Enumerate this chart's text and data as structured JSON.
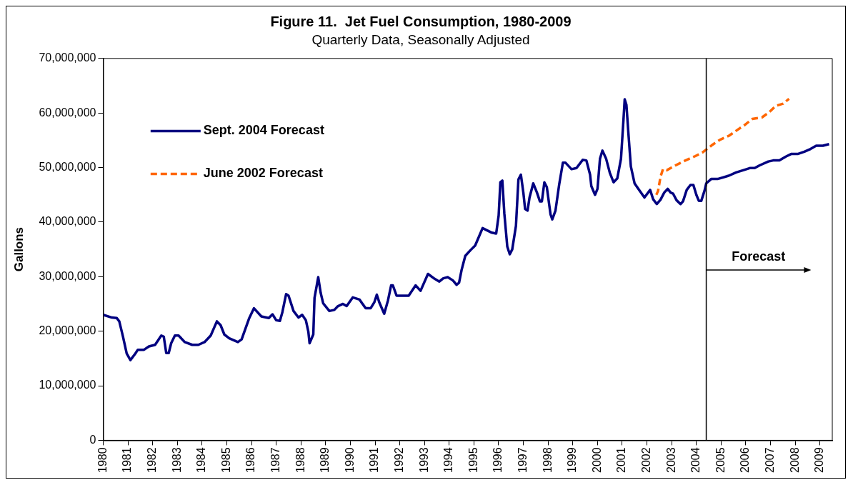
{
  "chart_data": {
    "type": "line",
    "title": "Figure 11.  Jet Fuel Consumption, 1980-2009",
    "subtitle": "Quarterly Data, Seasonally Adjusted",
    "ylabel": "Gallons",
    "xlim": [
      1980,
      2009.5
    ],
    "xticks": [
      1980,
      1981,
      1982,
      1983,
      1984,
      1985,
      1986,
      1987,
      1988,
      1989,
      1990,
      1991,
      1992,
      1993,
      1994,
      1995,
      1996,
      1997,
      1998,
      1999,
      2000,
      2001,
      2002,
      2003,
      2004,
      2005,
      2006,
      2007,
      2008,
      2009
    ],
    "ylim": [
      0,
      70000000
    ],
    "yticks": [
      {
        "value": 0,
        "label": "0"
      },
      {
        "value": 10000000,
        "label": "10,000,000"
      },
      {
        "value": 20000000,
        "label": "20,000,000"
      },
      {
        "value": 30000000,
        "label": "30,000,000"
      },
      {
        "value": 40000000,
        "label": "40,000,000"
      },
      {
        "value": 50000000,
        "label": "50,000,000"
      },
      {
        "value": 60000000,
        "label": "60,000,000"
      },
      {
        "value": 70000000,
        "label": "70,000,000"
      }
    ],
    "grid": false,
    "legend": "top left",
    "marker": "none",
    "series": [
      {
        "name": "Sept. 2004 Forecast",
        "color": "#000080",
        "line_style": "solid",
        "x": [
          1980,
          1980.35,
          1980.55,
          1980.65,
          1980.8,
          1980.95,
          1981.1,
          1981.3,
          1981.4,
          1981.65,
          1981.85,
          1982.1,
          1982.35,
          1982.45,
          1982.55,
          1982.65,
          1982.75,
          1982.9,
          1983.05,
          1983.3,
          1983.6,
          1983.85,
          1984.1,
          1984.35,
          1984.6,
          1984.75,
          1984.9,
          1985.1,
          1985.45,
          1985.6,
          1985.75,
          1985.9,
          1986.1,
          1986.4,
          1986.7,
          1986.85,
          1987,
          1987.15,
          1987.25,
          1987.4,
          1987.5,
          1987.7,
          1987.9,
          1988.05,
          1988.2,
          1988.3,
          1988.35,
          1988.5,
          1988.55,
          1988.7,
          1988.8,
          1988.9,
          1989.15,
          1989.35,
          1989.5,
          1989.7,
          1989.85,
          1990.1,
          1990.37,
          1990.62,
          1990.82,
          1990.97,
          1991.07,
          1991.17,
          1991.37,
          1991.52,
          1991.65,
          1991.72,
          1991.87,
          1992.36,
          1992.64,
          1992.84,
          1993.14,
          1993.41,
          1993.6,
          1993.76,
          1993.94,
          1994.15,
          1994.3,
          1994.4,
          1994.5,
          1994.65,
          1994.85,
          1995.05,
          1995.35,
          1995.7,
          1995.9,
          1996,
          1996.07,
          1996.15,
          1996.23,
          1996.35,
          1996.45,
          1996.55,
          1996.7,
          1996.8,
          1996.9,
          1997,
          1997.07,
          1997.17,
          1997.25,
          1997.4,
          1997.55,
          1997.67,
          1997.75,
          1997.85,
          1997.95,
          1998.1,
          1998.17,
          1998.3,
          1998.45,
          1998.6,
          1998.7,
          1998.95,
          1999.15,
          1999.4,
          1999.55,
          1999.7,
          1999.75,
          1999.9,
          2000,
          2000.1,
          2000.2,
          2000.35,
          2000.5,
          2000.65,
          2000.8,
          2000.95,
          2001.05,
          2001.1,
          2001.17,
          2001.25,
          2001.35,
          2001.5,
          2001.65,
          2001.9,
          2002.13,
          2002.25,
          2002.4,
          2002.55,
          2002.7,
          2002.84,
          2002.96,
          2003.06,
          2003.2,
          2003.36,
          2003.46,
          2003.61,
          2003.76,
          2003.88,
          2004,
          2004.1,
          2004.2,
          2004.34,
          2004.4,
          2004.6,
          2004.86,
          2005.31,
          2005.61,
          2005.96,
          2006.16,
          2006.36,
          2006.56,
          2006.91,
          2007.11,
          2007.36,
          2007.62,
          2007.85,
          2008.12,
          2008.37,
          2008.62,
          2008.85,
          2009.12,
          2009.37
        ],
        "values": [
          23000000,
          22500000,
          22400000,
          21800000,
          19000000,
          15900000,
          14700000,
          15900000,
          16600000,
          16600000,
          17200000,
          17500000,
          19200000,
          19000000,
          16000000,
          16000000,
          17800000,
          19200000,
          19200000,
          18000000,
          17500000,
          17500000,
          18000000,
          19200000,
          21800000,
          21100000,
          19400000,
          18700000,
          18000000,
          18500000,
          20400000,
          22300000,
          24200000,
          22700000,
          22400000,
          23100000,
          22000000,
          21900000,
          23500000,
          26800000,
          26500000,
          23700000,
          22500000,
          23000000,
          22000000,
          19900000,
          17800000,
          19400000,
          26100000,
          29900000,
          27000000,
          25100000,
          23700000,
          23900000,
          24600000,
          25000000,
          24600000,
          26200000,
          25800000,
          24200000,
          24200000,
          25300000,
          26700000,
          25300000,
          23200000,
          25600000,
          28400000,
          28400000,
          26500000,
          26500000,
          28400000,
          27400000,
          30500000,
          29600000,
          29100000,
          29700000,
          29900000,
          29300000,
          28500000,
          28900000,
          31200000,
          33800000,
          34800000,
          35700000,
          38900000,
          38100000,
          37900000,
          41200000,
          47300000,
          47600000,
          41600000,
          35500000,
          34100000,
          35000000,
          39300000,
          47800000,
          48700000,
          45400000,
          42400000,
          42100000,
          44500000,
          47100000,
          45400000,
          43800000,
          43800000,
          47300000,
          46400000,
          41400000,
          40500000,
          42100000,
          46900000,
          50900000,
          50900000,
          49700000,
          49900000,
          51400000,
          51300000,
          48700000,
          46600000,
          45000000,
          46100000,
          51600000,
          53100000,
          51600000,
          49000000,
          47300000,
          48000000,
          51600000,
          58700000,
          62500000,
          61500000,
          56300000,
          50200000,
          47100000,
          46100000,
          44500000,
          45900000,
          44200000,
          43300000,
          44100000,
          45400000,
          46100000,
          45400000,
          45200000,
          44000000,
          43300000,
          43800000,
          45900000,
          46800000,
          46800000,
          45000000,
          43900000,
          43900000,
          45900000,
          47100000,
          47900000,
          47900000,
          48500000,
          49100000,
          49600000,
          49900000,
          49900000,
          50400000,
          51100000,
          51300000,
          51300000,
          52000000,
          52500000,
          52500000,
          52900000,
          53400000,
          54000000,
          54000000,
          54300000
        ]
      },
      {
        "name": "June 2002 Forecast",
        "color": "#ff6600",
        "line_style": "dashed",
        "x": [
          2002.38,
          2002.45,
          2002.55,
          2002.65,
          2002.8,
          2003.16,
          2003.56,
          2003.96,
          2004.26,
          2004.66,
          2004.96,
          2005.31,
          2005.66,
          2005.96,
          2006.26,
          2006.66,
          2006.96,
          2007.21,
          2007.51,
          2007.75
        ],
        "values": [
          45000000,
          45700000,
          48300000,
          49700000,
          49500000,
          50400000,
          51300000,
          52100000,
          52800000,
          54200000,
          55100000,
          55800000,
          56900000,
          57800000,
          58900000,
          59200000,
          60200000,
          61300000,
          61700000,
          62600000
        ]
      }
    ],
    "ref_lines": [
      {
        "axis": "x",
        "value": 2004.4,
        "color": "#000000"
      }
    ],
    "annotations": [
      "Forecast"
    ]
  }
}
